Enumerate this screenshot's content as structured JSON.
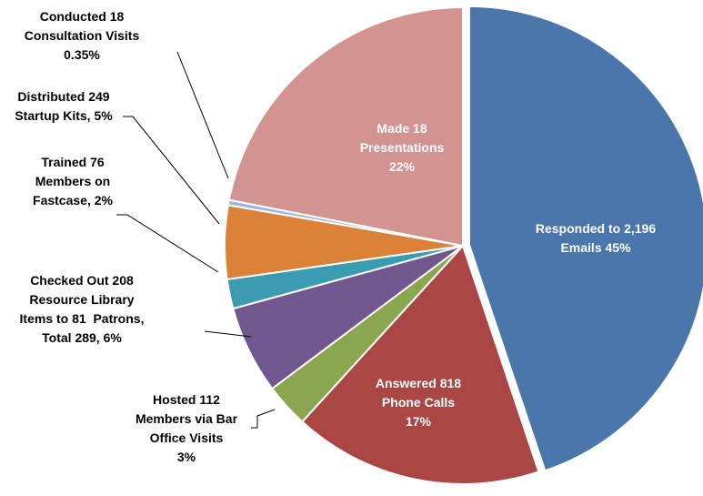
{
  "chart_data": {
    "type": "pie",
    "categories": [
      "Responded to 2,196\nEmails",
      "Answered 818\nPhone Calls",
      "Hosted 112\nMembers via Bar\nOffice Visits",
      "Checked Out 208\nResource Library\nItems to 81  Patrons,\nTotal 289, ",
      "Trained 76\nMembers on\nFastcase,",
      "Distributed 249\nStartup Kits,",
      "Conducted 18\nConsultation Visits",
      "Made 18\nPresentations"
    ],
    "values": [
      45,
      17,
      3,
      6,
      2,
      5,
      0.35,
      22
    ],
    "value_labels": [
      "45%",
      "17%",
      "3%",
      "6%",
      "2%",
      "5%",
      "0.35%",
      "22%"
    ],
    "colors": [
      "#4a76ab",
      "#aa4644",
      "#8aa64e",
      "#71578f",
      "#3b9bb1",
      "#db8238",
      "#9fb5d9",
      "#d39391"
    ]
  }
}
